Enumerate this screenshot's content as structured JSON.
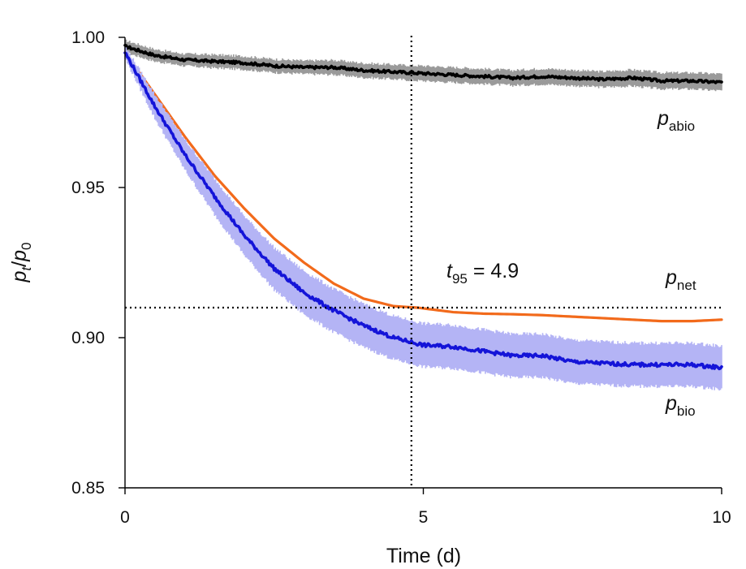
{
  "chart_data": {
    "type": "line",
    "title": "",
    "xlabel": "Time (d)",
    "ylabel": {
      "base": "p",
      "sub": "t",
      "slash": "/",
      "base2": "p",
      "sub2": "0"
    },
    "xlim": [
      0,
      10
    ],
    "ylim": [
      0.85,
      1.0
    ],
    "xticks": [
      0,
      5,
      10
    ],
    "xtick_labels": [
      "0",
      "5",
      "10"
    ],
    "yticks": [
      0.85,
      0.9,
      0.95,
      1.0
    ],
    "ytick_labels": [
      "0.85",
      "0.90",
      "0.95",
      "1.00"
    ],
    "grid": false,
    "reference_lines": {
      "vertical_x": 4.8,
      "horizontal_y": 0.91
    },
    "annotations": {
      "t95": {
        "base": "t",
        "sub": "95",
        "text": " = 4.9"
      },
      "p_abio": {
        "base": "p",
        "sub": "abio"
      },
      "p_net": {
        "base": "p",
        "sub": "net"
      },
      "p_bio": {
        "base": "p",
        "sub": "bio"
      }
    },
    "series": [
      {
        "name": "p_abio",
        "color": "#000000",
        "band_color": "#9a9a9a",
        "x": [
          0,
          0.5,
          1,
          1.5,
          2,
          2.5,
          3,
          3.5,
          4,
          4.5,
          5,
          5.5,
          6,
          6.5,
          7,
          7.5,
          8,
          8.5,
          9,
          9.5,
          10
        ],
        "y": [
          0.997,
          0.994,
          0.9925,
          0.992,
          0.9915,
          0.9905,
          0.99,
          0.99,
          0.989,
          0.9885,
          0.988,
          0.9875,
          0.987,
          0.9865,
          0.987,
          0.9865,
          0.986,
          0.9865,
          0.9855,
          0.9855,
          0.985
        ],
        "band": [
          0.002,
          0.002,
          0.002,
          0.0022,
          0.0022,
          0.0022,
          0.0022,
          0.0024,
          0.0024,
          0.0024,
          0.0025,
          0.0025,
          0.0025,
          0.0025,
          0.0026,
          0.0026,
          0.0026,
          0.0027,
          0.0027,
          0.0027,
          0.0028
        ]
      },
      {
        "name": "p_net",
        "color": "#f26a1b",
        "x": [
          0,
          0.5,
          1,
          1.5,
          2,
          2.5,
          3,
          3.5,
          4,
          4.5,
          4.9,
          5.5,
          6,
          6.5,
          7,
          7.5,
          8,
          8.5,
          9,
          9.5,
          10
        ],
        "y": [
          0.995,
          0.981,
          0.967,
          0.954,
          0.943,
          0.933,
          0.925,
          0.918,
          0.913,
          0.9105,
          0.91,
          0.9085,
          0.908,
          0.9078,
          0.9075,
          0.907,
          0.9065,
          0.906,
          0.9055,
          0.9055,
          0.906
        ]
      },
      {
        "name": "p_bio",
        "color": "#1414d8",
        "band_color": "#b4b4f5",
        "x": [
          0,
          0.5,
          1,
          1.5,
          2,
          2.5,
          3,
          3.5,
          4,
          4.5,
          5,
          5.5,
          6,
          6.5,
          7,
          7.5,
          8,
          8.5,
          9,
          9.5,
          10
        ],
        "y": [
          0.995,
          0.977,
          0.961,
          0.947,
          0.934,
          0.923,
          0.915,
          0.909,
          0.904,
          0.9,
          0.8975,
          0.897,
          0.8955,
          0.894,
          0.894,
          0.892,
          0.8915,
          0.891,
          0.891,
          0.891,
          0.89
        ],
        "band": [
          0.002,
          0.004,
          0.005,
          0.006,
          0.0065,
          0.007,
          0.0072,
          0.0072,
          0.0072,
          0.0072,
          0.0072,
          0.0072,
          0.0072,
          0.0072,
          0.0072,
          0.0072,
          0.0072,
          0.0072,
          0.0072,
          0.0072,
          0.0072
        ]
      }
    ]
  }
}
